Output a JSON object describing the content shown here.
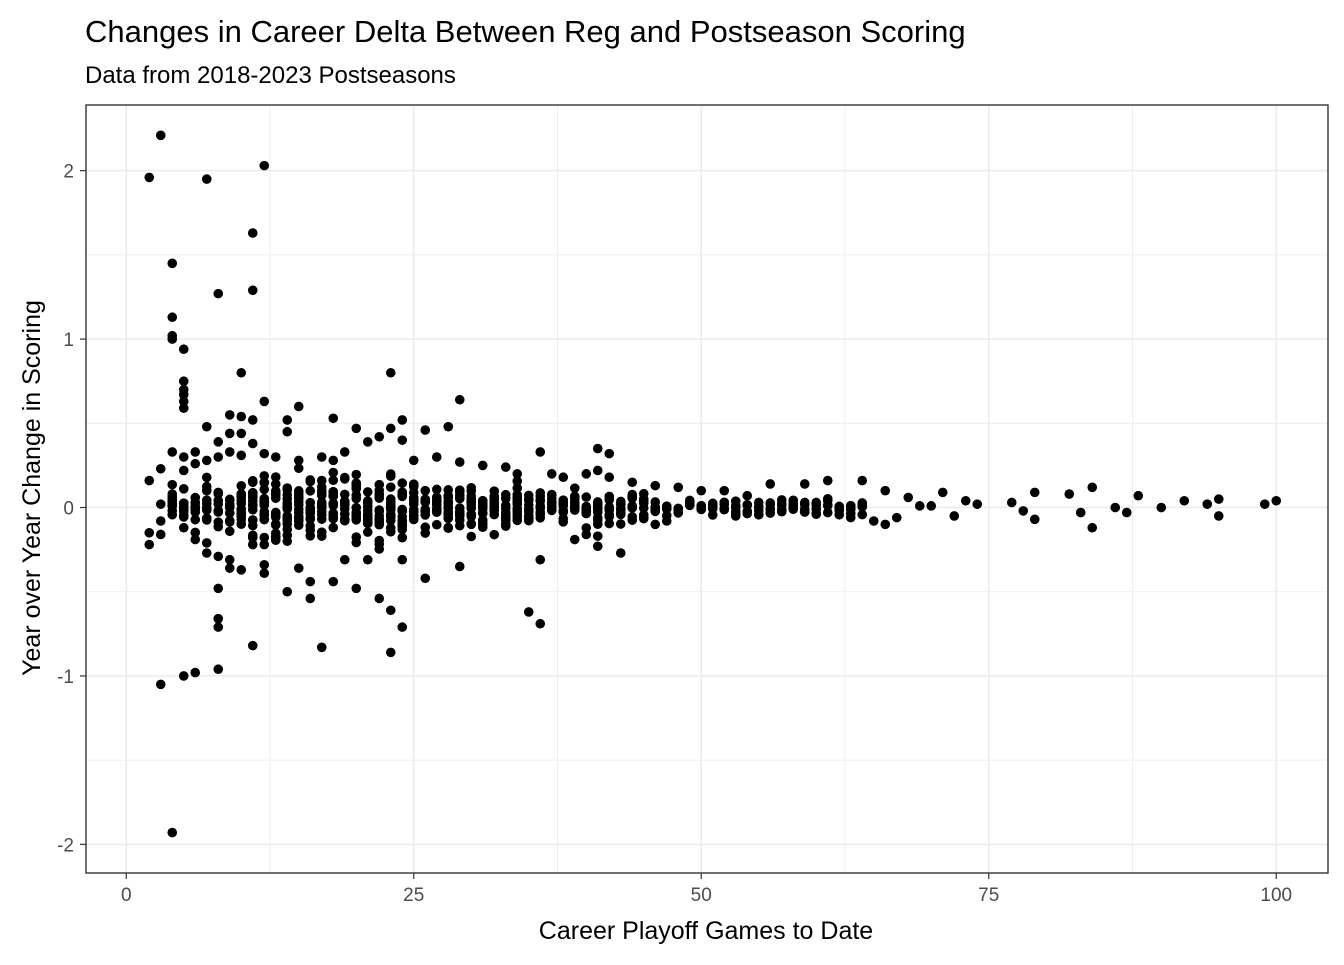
{
  "chart_data": {
    "type": "scatter",
    "title": "Changes in Career Delta Between Reg and Postseason Scoring",
    "subtitle": "Data from 2018-2023 Postseasons",
    "xlabel": "Career Playoff Games to Date",
    "ylabel": "Year over Year Change in Scoring",
    "xlim": [
      -3.5,
      104.5
    ],
    "ylim": [
      -2.17,
      2.39
    ],
    "x_ticks": [
      0,
      25,
      50,
      75,
      100
    ],
    "y_ticks": [
      -2,
      -1,
      0,
      1,
      2
    ],
    "x_tick_labels": [
      "0",
      "25",
      "50",
      "75",
      "100"
    ],
    "y_tick_labels": [
      "-2",
      "-1",
      "0",
      "1",
      "2"
    ],
    "grid": true,
    "legend": "none",
    "colors": {
      "points": "#000000",
      "grid": "#ebebeb",
      "panel_border": "#333333",
      "text": "#000000",
      "tick_text": "#4d4d4d"
    },
    "points": [
      [
        3,
        2.21
      ],
      [
        2,
        1.96
      ],
      [
        7,
        1.95
      ],
      [
        12,
        2.03
      ],
      [
        11,
        1.63
      ],
      [
        4,
        1.45
      ],
      [
        11,
        1.29
      ],
      [
        8,
        1.27
      ],
      [
        4,
        1.13
      ],
      [
        4,
        1.02
      ],
      [
        4,
        1.0
      ],
      [
        5,
        0.94
      ],
      [
        10,
        0.8
      ],
      [
        23,
        0.8
      ],
      [
        5,
        0.75
      ],
      [
        5,
        0.7
      ],
      [
        5,
        0.67
      ],
      [
        5,
        0.63
      ],
      [
        5,
        0.59
      ],
      [
        29,
        0.64
      ],
      [
        15,
        0.6
      ],
      [
        12,
        0.63
      ],
      [
        9,
        0.55
      ],
      [
        10,
        0.54
      ],
      [
        11,
        0.52
      ],
      [
        14,
        0.52
      ],
      [
        18,
        0.53
      ],
      [
        24,
        0.52
      ],
      [
        7,
        0.48
      ],
      [
        28,
        0.48
      ],
      [
        9,
        0.44
      ],
      [
        10,
        0.44
      ],
      [
        14,
        0.45
      ],
      [
        20,
        0.47
      ],
      [
        23,
        0.47
      ],
      [
        26,
        0.46
      ],
      [
        22,
        0.42
      ],
      [
        24,
        0.4
      ],
      [
        21,
        0.39
      ],
      [
        11,
        0.38
      ],
      [
        8,
        0.39
      ],
      [
        41,
        0.35
      ],
      [
        36,
        0.33
      ],
      [
        42,
        0.32
      ],
      [
        3,
        0.23
      ],
      [
        2,
        0.16
      ],
      [
        3,
        -0.08
      ],
      [
        2,
        -0.15
      ],
      [
        3,
        -0.16
      ],
      [
        2,
        -0.22
      ],
      [
        3,
        -1.05
      ],
      [
        5,
        -1.0
      ],
      [
        6,
        -0.98
      ],
      [
        8,
        -0.96
      ],
      [
        11,
        -0.82
      ],
      [
        17,
        -0.83
      ],
      [
        23,
        -0.86
      ],
      [
        4,
        -1.93
      ],
      [
        8,
        -0.66
      ],
      [
        8,
        -0.71
      ],
      [
        8,
        -0.48
      ],
      [
        14,
        -0.5
      ],
      [
        16,
        -0.54
      ],
      [
        16,
        -0.44
      ],
      [
        15,
        -0.36
      ],
      [
        18,
        -0.44
      ],
      [
        20,
        -0.48
      ],
      [
        22,
        -0.54
      ],
      [
        23,
        -0.61
      ],
      [
        24,
        -0.71
      ],
      [
        26,
        -0.42
      ],
      [
        29,
        -0.35
      ],
      [
        35,
        -0.62
      ],
      [
        36,
        -0.69
      ],
      [
        36,
        -0.31
      ],
      [
        43,
        -0.27
      ],
      [
        9,
        -0.36
      ],
      [
        10,
        -0.37
      ],
      [
        12,
        -0.39
      ],
      [
        12,
        -0.34
      ],
      [
        7,
        -0.27
      ],
      [
        8,
        -0.29
      ],
      [
        9,
        -0.31
      ],
      [
        11,
        -0.22
      ],
      [
        12,
        -0.22
      ],
      [
        13,
        -0.18
      ],
      [
        19,
        -0.31
      ],
      [
        21,
        -0.31
      ],
      [
        24,
        -0.31
      ],
      [
        39,
        -0.19
      ],
      [
        40,
        -0.16
      ],
      [
        41,
        -0.23
      ],
      [
        41,
        -0.17
      ],
      [
        46,
        -0.1
      ],
      [
        47,
        -0.08
      ],
      [
        4,
        0.33
      ],
      [
        5,
        0.3
      ],
      [
        6,
        0.33
      ],
      [
        7,
        0.28
      ],
      [
        8,
        0.3
      ],
      [
        9,
        0.33
      ],
      [
        10,
        0.31
      ],
      [
        12,
        0.32
      ],
      [
        13,
        0.3
      ],
      [
        15,
        0.28
      ],
      [
        17,
        0.3
      ],
      [
        18,
        0.28
      ],
      [
        19,
        0.33
      ],
      [
        25,
        0.28
      ],
      [
        27,
        0.3
      ],
      [
        29,
        0.27
      ],
      [
        31,
        0.25
      ],
      [
        33,
        0.24
      ],
      [
        34,
        0.2
      ],
      [
        37,
        0.2
      ],
      [
        38,
        0.18
      ],
      [
        40,
        0.2
      ],
      [
        41,
        0.22
      ],
      [
        42,
        0.18
      ],
      [
        44,
        0.15
      ],
      [
        46,
        0.13
      ],
      [
        48,
        0.12
      ],
      [
        50,
        0.1
      ],
      [
        52,
        0.1
      ],
      [
        56,
        0.14
      ],
      [
        59,
        0.14
      ],
      [
        61,
        0.16
      ],
      [
        64,
        0.16
      ],
      [
        66,
        0.1
      ],
      [
        68,
        0.06
      ],
      [
        71,
        0.09
      ],
      [
        73,
        0.04
      ],
      [
        77,
        0.03
      ],
      [
        79,
        0.09
      ],
      [
        82,
        0.08
      ],
      [
        84,
        0.12
      ],
      [
        88,
        0.07
      ],
      [
        92,
        0.04
      ],
      [
        95,
        0.05
      ],
      [
        100,
        0.04
      ],
      [
        99,
        0.02
      ],
      [
        94,
        0.02
      ],
      [
        90,
        0.0
      ],
      [
        87,
        -0.03
      ],
      [
        86,
        0.0
      ],
      [
        84,
        -0.12
      ],
      [
        83,
        -0.03
      ],
      [
        79,
        -0.07
      ],
      [
        78,
        -0.02
      ],
      [
        74,
        0.02
      ],
      [
        72,
        -0.05
      ],
      [
        70,
        0.01
      ],
      [
        69,
        0.01
      ],
      [
        67,
        -0.06
      ],
      [
        66,
        -0.1
      ],
      [
        65,
        -0.08
      ],
      [
        63,
        -0.06
      ],
      [
        62,
        0.0
      ],
      [
        60,
        -0.04
      ],
      [
        95,
        -0.05
      ],
      [
        4,
        0.02
      ],
      [
        4,
        0.08
      ],
      [
        3,
        0.02
      ],
      [
        4,
        -0.02
      ],
      [
        5,
        -0.02
      ],
      [
        5,
        -0.12
      ],
      [
        5,
        0.0
      ],
      [
        5,
        0.22
      ],
      [
        6,
        0.26
      ],
      [
        7,
        -0.21
      ],
      [
        6,
        -0.19
      ],
      [
        55,
        0.03
      ],
      [
        58,
        -0.01
      ],
      [
        53,
        -0.04
      ],
      [
        54,
        0.07
      ]
    ]
  }
}
